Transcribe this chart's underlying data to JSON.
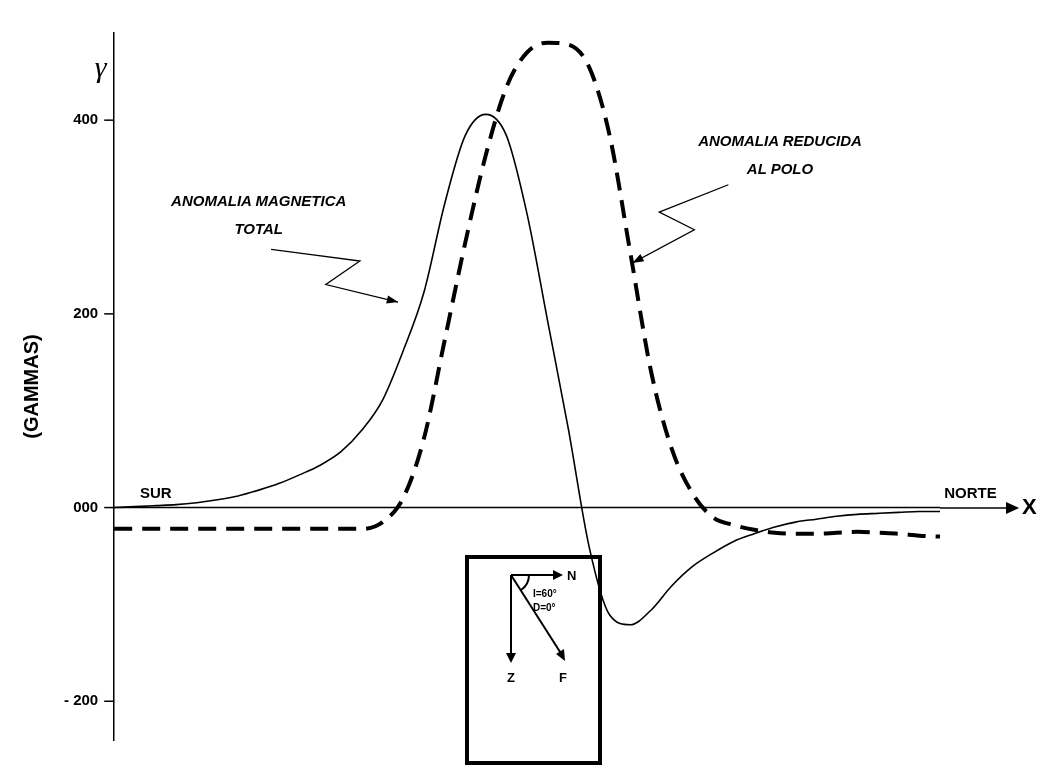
{
  "chart_data": {
    "type": "line",
    "ylabel": "(GAMMAS)",
    "categories": [
      null,
      null,
      null,
      null,
      null,
      null,
      null,
      null,
      null,
      null,
      null,
      null,
      null,
      null,
      null,
      null,
      null,
      null,
      null,
      null,
      null,
      null,
      null,
      null,
      null,
      null,
      null,
      null,
      null,
      null,
      null,
      null,
      null,
      null,
      null,
      null,
      null,
      null,
      null,
      null,
      null
    ],
    "series": [
      {
        "color": "#000000",
        "line_style": "solid",
        "values": [
          0,
          1,
          2,
          3,
          5,
          8,
          12,
          18,
          25,
          34,
          44,
          58,
          80,
          111,
          162,
          222,
          313,
          384,
          406,
          384,
          303,
          192,
          81,
          -40,
          -111,
          -121,
          -106,
          -81,
          -61,
          -47,
          -35,
          -27,
          -20,
          -15,
          -12,
          -9,
          -7,
          -6,
          -5,
          -4,
          -4
        ]
      },
      {
        "color": "#000000",
        "line_style": "dashed",
        "values": [
          -22,
          -22,
          -22,
          -22,
          -22,
          -22,
          -22,
          -22,
          -22,
          -22,
          -22,
          -22,
          -22,
          -15,
          10,
          71,
          172,
          273,
          364,
          434,
          470,
          480,
          478,
          455,
          384,
          263,
          141,
          61,
          15,
          -10,
          -18,
          -23,
          -26,
          -27,
          -27,
          -26,
          -25,
          -26,
          -27,
          -29,
          -30
        ]
      }
    ],
    "ylim": [
      -240,
      490
    ],
    "yticks": [
      {
        "value": 400,
        "label": "400"
      },
      {
        "value": 200,
        "label": "200"
      },
      {
        "value": 0,
        "label": "000"
      },
      {
        "value": -200,
        "label": "- 200"
      }
    ],
    "annotations": [
      "γ",
      "SUR",
      "NORTE",
      "X",
      "N",
      "I=60°",
      "D=0°",
      "Z",
      "F",
      "ANOMALIA MAGNETICA TOTAL",
      "ANOMALIA REDUCIDA AL POLO"
    ],
    "ref_lines": [
      {
        "axis": "y",
        "value": 0
      }
    ],
    "grid": false,
    "legend": false,
    "tick_labels": "y",
    "marker": "none"
  }
}
